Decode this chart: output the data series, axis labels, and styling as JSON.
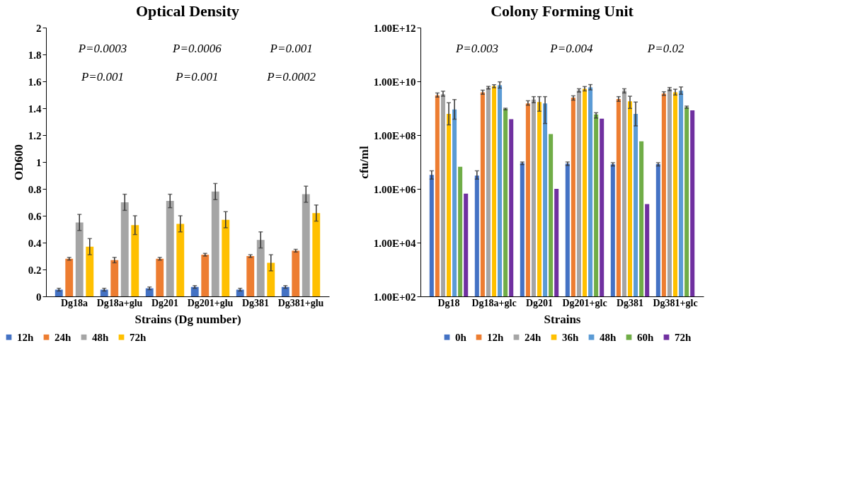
{
  "chart_data": [
    {
      "type": "bar",
      "title": "Optical Density",
      "xlabel": "Strains (Dg number)",
      "ylabel": "OD600",
      "categories": [
        "Dg18a",
        "Dg18a+glu",
        "Dg201",
        "Dg201+glu",
        "Dg381",
        "Dg381+glu"
      ],
      "series": [
        {
          "name": "12h",
          "color": "#4472c4",
          "values": [
            0.05,
            0.05,
            0.06,
            0.07,
            0.05,
            0.07
          ],
          "errors": [
            0.01,
            0.01,
            0.01,
            0.01,
            0.01,
            0.01
          ]
        },
        {
          "name": "24h",
          "color": "#ed7d31",
          "values": [
            0.28,
            0.27,
            0.28,
            0.31,
            0.3,
            0.34
          ],
          "errors": [
            0.01,
            0.02,
            0.01,
            0.01,
            0.01,
            0.01
          ]
        },
        {
          "name": "48h",
          "color": "#a5a5a5",
          "values": [
            0.55,
            0.7,
            0.71,
            0.78,
            0.42,
            0.76
          ],
          "errors": [
            0.06,
            0.06,
            0.05,
            0.06,
            0.06,
            0.06
          ]
        },
        {
          "name": "72h",
          "color": "#ffc000",
          "values": [
            0.37,
            0.53,
            0.54,
            0.57,
            0.25,
            0.62
          ],
          "errors": [
            0.06,
            0.07,
            0.06,
            0.06,
            0.06,
            0.06
          ]
        }
      ],
      "ylim": [
        0,
        2
      ],
      "yticks": [
        0,
        0.2,
        0.4,
        0.6,
        0.8,
        1,
        1.2,
        1.4,
        1.6,
        1.8,
        2
      ],
      "grid": false,
      "legend": "bottom left",
      "annotations": [
        "P=0.0003",
        "P=0.001",
        "P=0.0006",
        "P=0.001",
        "P=0.001",
        "P=0.0002"
      ]
    },
    {
      "type": "bar",
      "title": "Colony Forming Unit",
      "xlabel": "Strains",
      "ylabel": "cfu/ml",
      "log": true,
      "categories": [
        "Dg18",
        "Dg18a+glc",
        "Dg201",
        "Dg201+glc",
        "Dg381",
        "Dg381+glc"
      ],
      "series": [
        {
          "name": "0h",
          "color": "#4472c4",
          "values": [
            3300000.0,
            3100000.0,
            9100000.0,
            8700000.0,
            8200000.0,
            8300000.0
          ],
          "errors": [
            [
              2300000.0,
              4700000.0
            ],
            [
              2300000.0,
              4700000.0
            ],
            [
              8000000.0,
              10000000.0
            ],
            [
              7400000.0,
              10000000.0
            ],
            [
              7100000.0,
              9400000.0
            ],
            [
              7100000.0,
              9400000.0
            ]
          ]
        },
        {
          "name": "12h",
          "color": "#ed7d31",
          "values": [
            3000000000.0,
            3900000000.0,
            1500000000.0,
            2500000000.0,
            2200000000.0,
            3500000000.0
          ],
          "errors": [
            [
              2600000000.0,
              3700000000.0
            ],
            [
              3300000000.0,
              4700000000.0
            ],
            [
              1300000000.0,
              1900000000.0
            ],
            [
              2000000000.0,
              2900000000.0
            ],
            [
              1800000000.0,
              2700000000.0
            ],
            [
              3000000000.0,
              4100000000.0
            ]
          ]
        },
        {
          "name": "24h",
          "color": "#a5a5a5",
          "values": [
            3300000000.0,
            5900000000.0,
            2100000000.0,
            4600000000.0,
            4500000000.0,
            5200000000.0
          ],
          "errors": [
            [
              2800000000.0,
              4300000000.0
            ],
            [
              5200000000.0,
              6500000000.0
            ],
            [
              1600000000.0,
              2700000000.0
            ],
            [
              4000000000.0,
              5300000000.0
            ],
            [
              3700000000.0,
              5300000000.0
            ],
            [
              4500000000.0,
              5900000000.0
            ]
          ]
        },
        {
          "name": "36h",
          "color": "#ffc000",
          "values": [
            620000000.0,
            6600000000.0,
            1700000000.0,
            5300000000.0,
            1800000000.0,
            3900000000.0
          ],
          "errors": [
            [
              240000000.0,
              1600000000.0
            ],
            [
              5800000000.0,
              7500000000.0
            ],
            [
              770000000.0,
              2700000000.0
            ],
            [
              4400000000.0,
              6400000000.0
            ],
            [
              980000000.0,
              2800000000.0
            ],
            [
              3100000000.0,
              5100000000.0
            ]
          ]
        },
        {
          "name": "48h",
          "color": "#5b9bd5",
          "values": [
            900000000.0,
            7200000000.0,
            1500000000.0,
            6000000000.0,
            620000000.0,
            4500000000.0
          ],
          "errors": [
            [
              390000000.0,
              2100000000.0
            ],
            [
              5600000000.0,
              9600000000.0
            ],
            [
              270000000.0,
              2700000000.0
            ],
            [
              4800000000.0,
              7600000000.0
            ],
            [
              220000000.0,
              1700000000.0
            ],
            [
              3300000000.0,
              6200000000.0
            ]
          ]
        },
        {
          "name": "60h",
          "color": "#70ad47",
          "values": [
            6600000.0,
            940000000.0,
            110000000.0,
            590000000.0,
            59000000.0,
            1100000000.0
          ],
          "errors": [
            null,
            [
              870000000.0,
              1000000000.0
            ],
            null,
            [
              430000000.0,
              680000000.0
            ],
            null,
            [
              1000000000.0,
              1200000000.0
            ]
          ]
        },
        {
          "name": "72h",
          "color": "#7030a0",
          "values": [
            660000.0,
            390000000.0,
            1000000.0,
            410000000.0,
            270000.0,
            840000000.0
          ]
        }
      ],
      "ylim": [
        100,
        1000000000000.0
      ],
      "yticks": [
        {
          "value": 100,
          "label": "1.00E+02"
        },
        {
          "value": 10000.0,
          "label": "1.00E+04"
        },
        {
          "value": 1000000.0,
          "label": "1.00E+06"
        },
        {
          "value": 100000000.0,
          "label": "1.00E+08"
        },
        {
          "value": 10000000000.0,
          "label": "1.00E+10"
        },
        {
          "value": 1000000000000.0,
          "label": "1.00E+12"
        }
      ],
      "grid": false,
      "legend": "bottom",
      "annotations": [
        "P=0.003",
        "P=0.004",
        "P=0.02"
      ]
    }
  ]
}
